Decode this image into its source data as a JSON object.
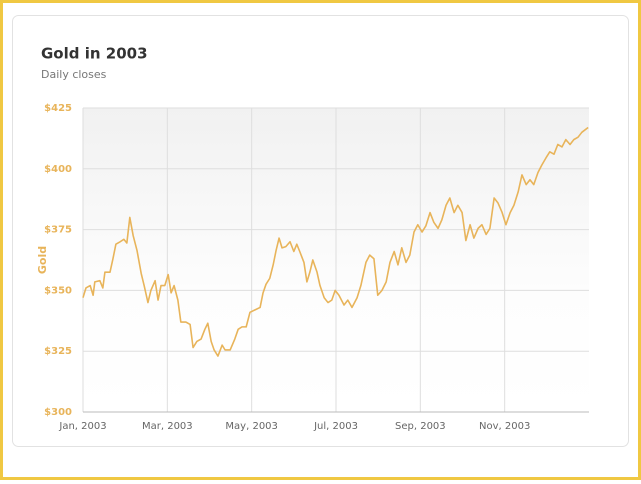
{
  "chart_data": {
    "type": "line",
    "title": "Gold in 2003",
    "subtitle": "Daily closes",
    "y_label": "Gold",
    "xlim": [
      0,
      12
    ],
    "xticks": [
      {
        "value": 0,
        "label": "Jan, 2003"
      },
      {
        "value": 2,
        "label": "Mar, 2003"
      },
      {
        "value": 4,
        "label": "May, 2003"
      },
      {
        "value": 6,
        "label": "Jul, 2003"
      },
      {
        "value": 8,
        "label": "Sep, 2003"
      },
      {
        "value": 10,
        "label": "Nov, 2003"
      }
    ],
    "ylim": [
      300,
      425
    ],
    "yticks": [
      {
        "value": 300,
        "label": "$300"
      },
      {
        "value": 325,
        "label": "$325"
      },
      {
        "value": 350,
        "label": "$350"
      },
      {
        "value": 375,
        "label": "$375"
      },
      {
        "value": 400,
        "label": "$400"
      },
      {
        "value": 425,
        "label": "$425"
      }
    ],
    "grid": true,
    "x": [
      0,
      0.07,
      0.17,
      0.24,
      0.28,
      0.4,
      0.47,
      0.52,
      0.64,
      0.71,
      0.78,
      0.88,
      0.97,
      1.04,
      1.11,
      1.19,
      1.28,
      1.38,
      1.45,
      1.54,
      1.61,
      1.71,
      1.78,
      1.85,
      1.94,
      2.02,
      2.09,
      2.16,
      2.25,
      2.32,
      2.44,
      2.54,
      2.61,
      2.7,
      2.8,
      2.89,
      2.96,
      3.04,
      3.11,
      3.2,
      3.3,
      3.37,
      3.49,
      3.6,
      3.68,
      3.77,
      3.87,
      3.96,
      4.08,
      4.2,
      4.27,
      4.34,
      4.43,
      4.51,
      4.58,
      4.65,
      4.72,
      4.81,
      4.91,
      5.0,
      5.07,
      5.14,
      5.24,
      5.31,
      5.38,
      5.45,
      5.55,
      5.62,
      5.72,
      5.81,
      5.9,
      5.98,
      6.07,
      6.19,
      6.28,
      6.38,
      6.5,
      6.59,
      6.71,
      6.8,
      6.9,
      6.99,
      7.09,
      7.19,
      7.28,
      7.38,
      7.47,
      7.56,
      7.66,
      7.75,
      7.85,
      7.94,
      8.04,
      8.13,
      8.23,
      8.32,
      8.42,
      8.51,
      8.61,
      8.7,
      8.8,
      8.89,
      8.99,
      9.08,
      9.18,
      9.27,
      9.37,
      9.46,
      9.56,
      9.65,
      9.75,
      9.84,
      9.94,
      10.03,
      10.13,
      10.22,
      10.32,
      10.41,
      10.51,
      10.6,
      10.69,
      10.79,
      10.88,
      10.98,
      11.07,
      11.17,
      11.26,
      11.36,
      11.45,
      11.55,
      11.64,
      11.74,
      11.83,
      11.98
    ],
    "series": [
      {
        "name": "Gold",
        "color": "#e8b45a",
        "values": [
          347,
          351,
          352,
          348,
          353.5,
          354,
          351,
          357.5,
          357.5,
          363,
          369,
          370,
          371,
          369.5,
          380,
          372.5,
          366.5,
          357,
          352,
          345,
          350,
          354,
          346,
          352,
          352,
          356.5,
          349,
          352,
          346,
          337,
          337,
          336,
          326.5,
          329,
          330,
          334,
          336.5,
          329,
          325.5,
          323,
          327.5,
          325.5,
          325.5,
          330,
          334,
          335,
          335,
          341,
          342,
          343,
          349,
          352.5,
          355,
          360.5,
          366.5,
          371.5,
          367.5,
          368,
          370,
          366,
          369,
          366,
          361.5,
          353.5,
          357.5,
          362.5,
          357.5,
          352,
          347,
          345,
          346,
          350,
          348,
          344,
          346,
          343,
          347,
          352,
          361.5,
          364.5,
          363,
          348,
          350,
          353.5,
          361.5,
          366,
          360.5,
          367.5,
          361.5,
          364.5,
          374,
          377,
          374,
          376.5,
          382,
          378,
          375.5,
          379,
          385,
          388,
          382,
          385,
          382,
          370.5,
          377,
          371.5,
          375.5,
          377,
          373,
          375.5,
          388,
          386,
          382,
          377,
          382,
          385,
          390.5,
          397.5,
          393.5,
          395.5,
          393.5,
          398.5,
          401.5,
          404.5,
          407,
          406,
          410,
          409,
          412,
          410,
          412,
          413,
          415,
          417
        ]
      }
    ]
  }
}
